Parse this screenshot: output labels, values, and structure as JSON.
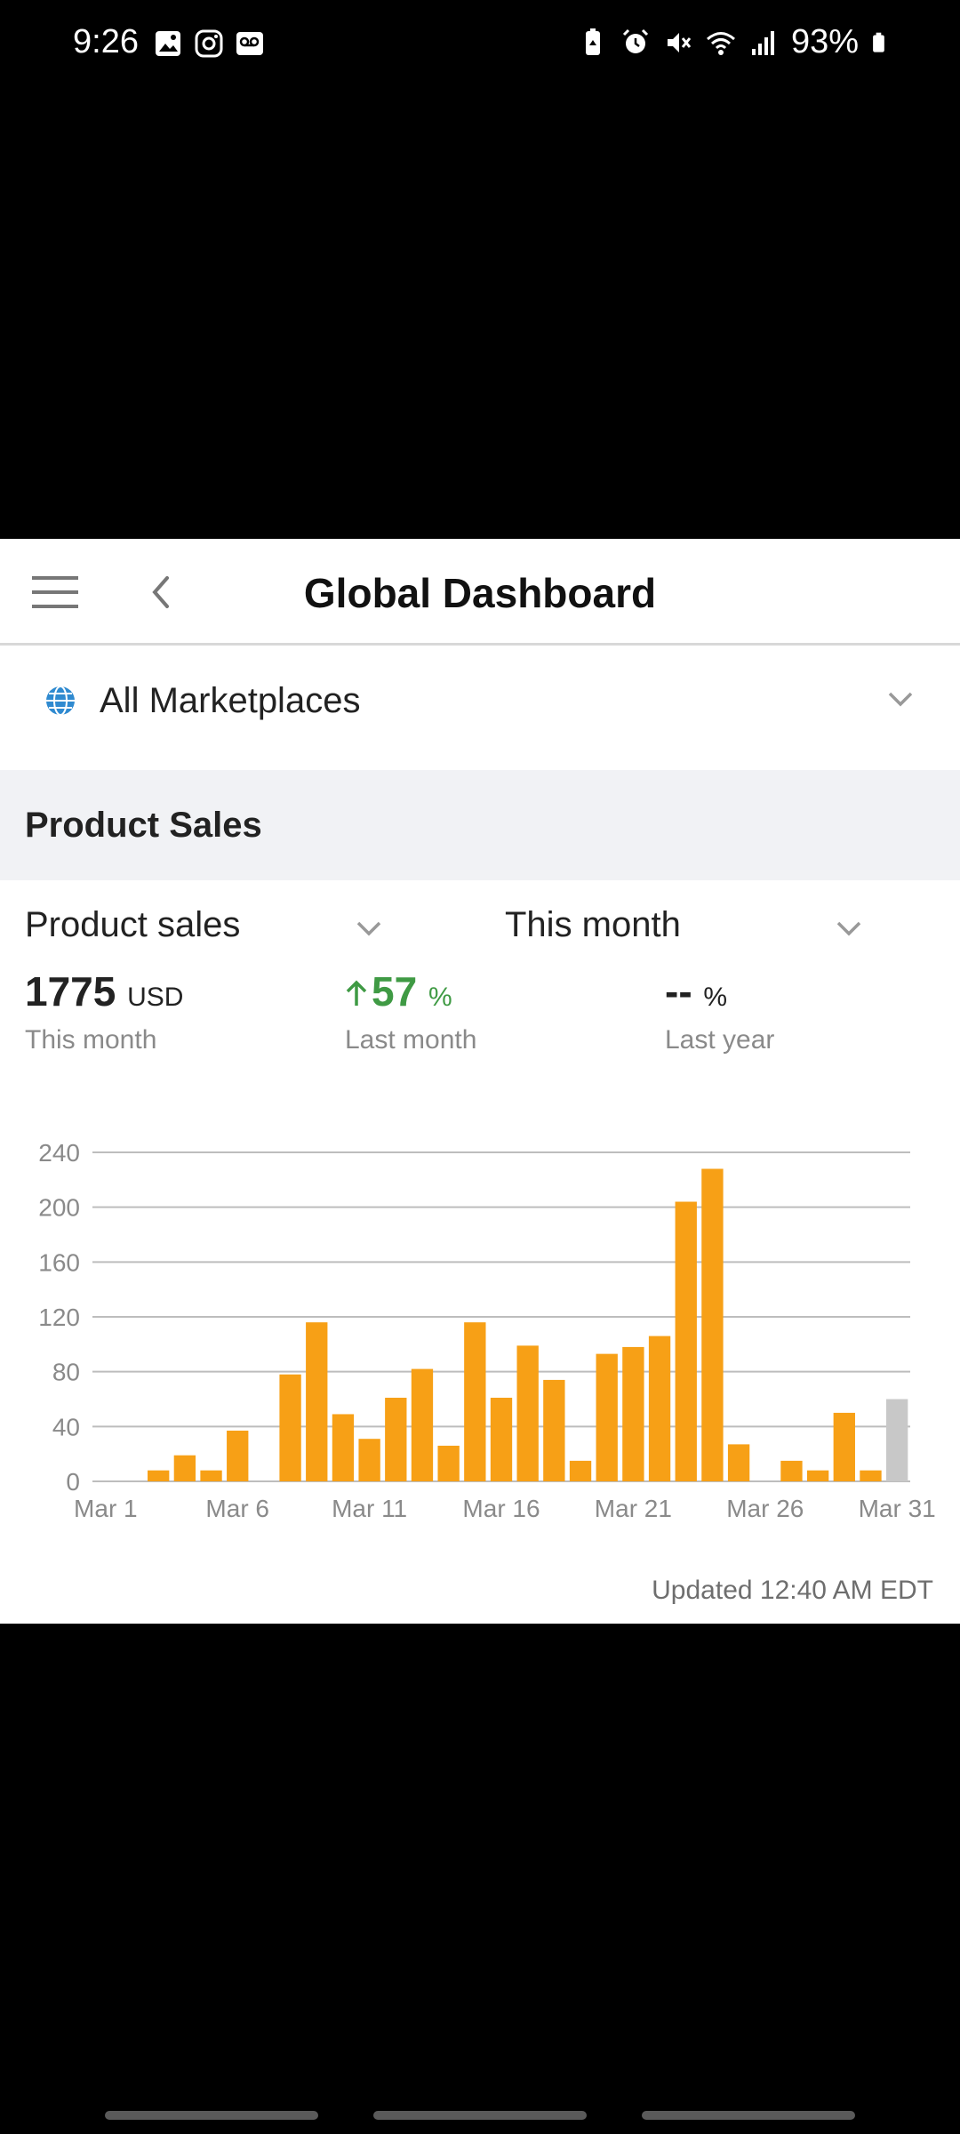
{
  "status_bar": {
    "time": "9:26",
    "battery": "93%"
  },
  "header": {
    "title": "Global Dashboard"
  },
  "marketplace": {
    "label": "All Marketplaces"
  },
  "section": {
    "title": "Product Sales"
  },
  "selectors": {
    "metric": "Product sales",
    "period": "This month"
  },
  "metrics": {
    "current": {
      "value": "1775",
      "unit": "USD",
      "label": "This month"
    },
    "vs_last_month": {
      "value": "57",
      "unit": "%",
      "label": "Last month",
      "trend": "up"
    },
    "vs_last_year": {
      "value": "--",
      "unit": "%",
      "label": "Last year"
    }
  },
  "chart_data": {
    "type": "bar",
    "categories": [
      "Mar 1",
      "Mar 2",
      "Mar 3",
      "Mar 4",
      "Mar 5",
      "Mar 6",
      "Mar 7",
      "Mar 8",
      "Mar 9",
      "Mar 10",
      "Mar 11",
      "Mar 12",
      "Mar 13",
      "Mar 14",
      "Mar 15",
      "Mar 16",
      "Mar 17",
      "Mar 18",
      "Mar 19",
      "Mar 20",
      "Mar 21",
      "Mar 22",
      "Mar 23",
      "Mar 24",
      "Mar 25",
      "Mar 26",
      "Mar 27",
      "Mar 28",
      "Mar 29",
      "Mar 30",
      "Mar 31"
    ],
    "values": [
      0,
      0,
      8,
      19,
      8,
      37,
      0,
      78,
      116,
      49,
      31,
      61,
      82,
      26,
      116,
      61,
      99,
      74,
      15,
      93,
      98,
      106,
      204,
      228,
      27,
      0,
      15,
      8,
      50,
      8,
      60
    ],
    "highlight_index": 30,
    "x_tick_labels": [
      "Mar 1",
      "Mar 6",
      "Mar 11",
      "Mar 16",
      "Mar 21",
      "Mar 26",
      "Mar 31"
    ],
    "y_ticks": [
      0,
      40,
      80,
      120,
      160,
      200,
      240
    ],
    "ylim": [
      0,
      240
    ],
    "colors": {
      "bar": "#f7a016",
      "highlight": "#c8c8c8",
      "grid": "#bdbdbd",
      "axis_text": "#8a8a8a"
    },
    "grid": true
  },
  "footer": {
    "updated": "Updated 12:40 AM EDT"
  }
}
